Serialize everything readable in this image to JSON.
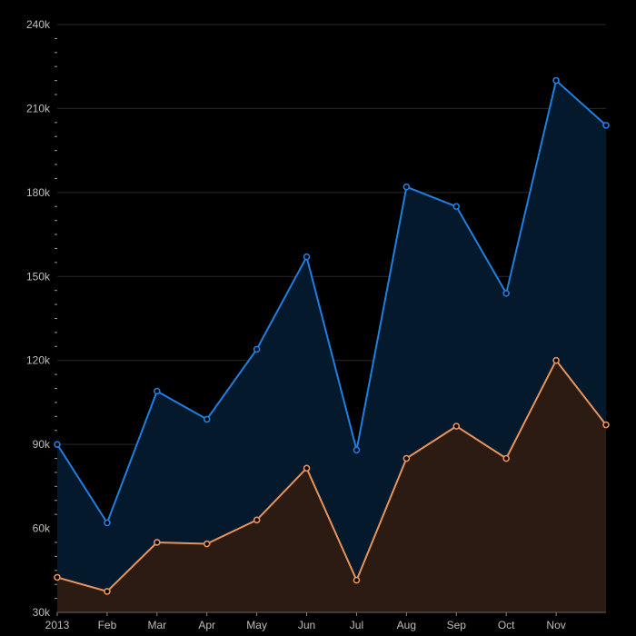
{
  "chart_data": {
    "type": "area",
    "x": [
      "2013-01-01",
      "2013-02-01",
      "2013-03-01",
      "2013-04-01",
      "2013-05-01",
      "2013-06-01",
      "2013-07-01",
      "2013-08-01",
      "2013-09-01",
      "2013-10-01",
      "2013-11-01",
      "2013-12-01"
    ],
    "x_tick_labels": [
      "2013",
      "Feb",
      "Mar",
      "Apr",
      "May",
      "Jun",
      "Jul",
      "Aug",
      "Sep",
      "Oct",
      "Nov"
    ],
    "y_tick_labels": [
      "30k",
      "60k",
      "90k",
      "120k",
      "150k",
      "180k",
      "210k",
      "240k"
    ],
    "y_ticks": [
      30000,
      60000,
      90000,
      120000,
      150000,
      180000,
      210000,
      240000
    ],
    "ylim": [
      30000,
      240000
    ],
    "grid": true,
    "series": [
      {
        "values": [
          90000,
          62000,
          109000,
          99000,
          124000,
          157000,
          88000,
          182000,
          175000,
          144000,
          220000,
          204000
        ],
        "color": "#1f7fe0",
        "fill": "#04192b"
      },
      {
        "values": [
          42500,
          37500,
          55000,
          54500,
          63000,
          81500,
          41500,
          85000,
          96500,
          85000,
          120000,
          97000
        ],
        "color": "#e8935a",
        "fill": "#2b1b12"
      }
    ]
  }
}
